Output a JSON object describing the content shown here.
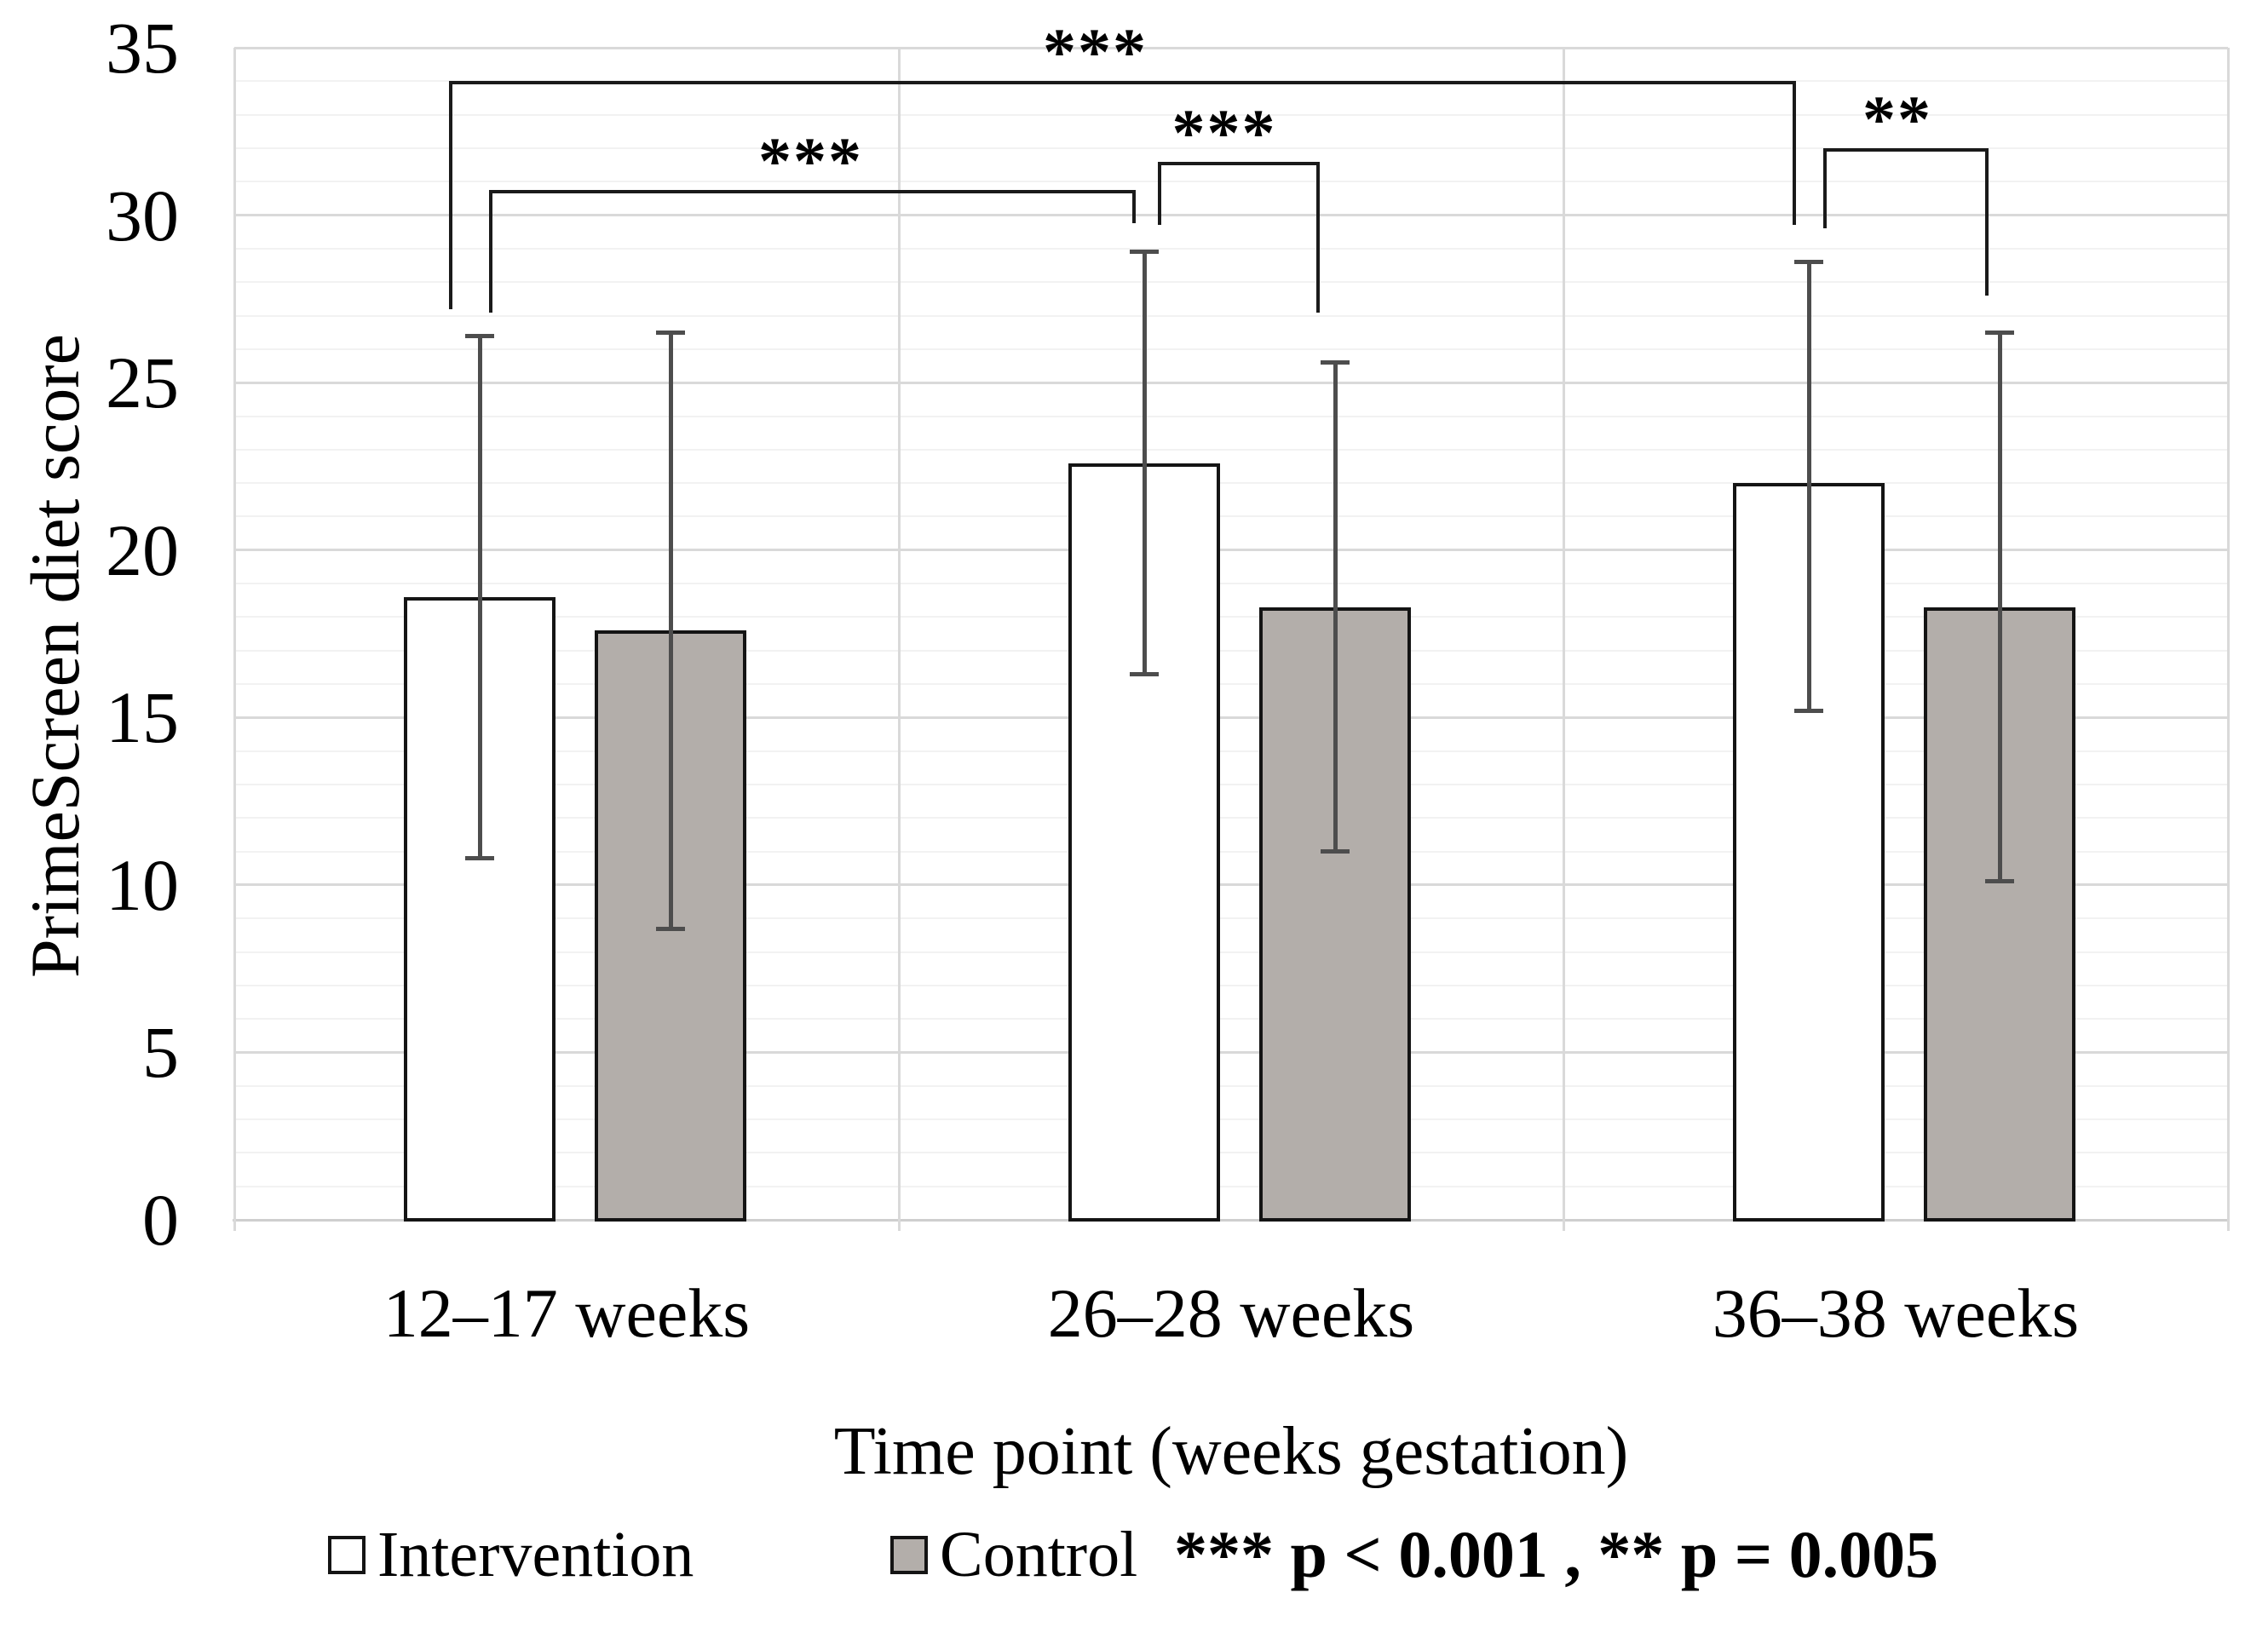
{
  "chart_data": {
    "type": "bar",
    "title": "",
    "ylabel": "PrimeScreen diet score",
    "xlabel": "Time point (weeks gestation)",
    "ylim": [
      0,
      35
    ],
    "y_major_ticks": [
      0,
      5,
      10,
      15,
      20,
      25,
      30,
      35
    ],
    "y_minor_step": 1,
    "grid": "horizontal minor every 1 (very light), major every 5 (light gray), light gray plot border and vertical category separators",
    "legend_position": "bottom",
    "categories": [
      "12–17 weeks",
      "26–28 weeks",
      "36–38 weeks"
    ],
    "series": [
      {
        "name": "Intervention",
        "fill": "#ffffff",
        "values": [
          18.6,
          22.6,
          22.0
        ],
        "error_low": [
          10.8,
          16.3,
          15.2
        ],
        "error_high": [
          26.4,
          28.9,
          28.6
        ]
      },
      {
        "name": "Control",
        "fill": "#b3aeaa",
        "values": [
          17.6,
          18.3,
          18.3
        ],
        "error_low": [
          8.7,
          11.0,
          10.1
        ],
        "error_high": [
          26.5,
          25.6,
          26.5
        ]
      }
    ],
    "significance_brackets": [
      {
        "label": "***",
        "from": {
          "group": 0,
          "series": 0,
          "dx": -36
        },
        "to": {
          "group": 2,
          "series": 0,
          "dx": -19
        },
        "bar_value": 34.0,
        "from_drop_value": 27.2,
        "to_drop_value": 29.7,
        "label_dx": -30
      },
      {
        "label": "***",
        "from": {
          "group": 0,
          "series": 0,
          "dx": 11
        },
        "to": {
          "group": 1,
          "series": 0,
          "dx": -14
        },
        "bar_value": 30.75,
        "from_drop_value": 27.1,
        "to_drop_value": 29.75,
        "label_dx": 0
      },
      {
        "label": "***",
        "from": {
          "group": 1,
          "series": 0,
          "dx": 16
        },
        "to": {
          "group": 1,
          "series": 1,
          "dx": -22
        },
        "bar_value": 31.6,
        "from_drop_value": 29.7,
        "to_drop_value": 27.1,
        "label_dx": -15
      },
      {
        "label": "**",
        "from": {
          "group": 2,
          "series": 0,
          "dx": 17
        },
        "to": {
          "group": 2,
          "series": 1,
          "dx": -17
        },
        "bar_value": 32.0,
        "from_drop_value": 29.6,
        "to_drop_value": 27.6,
        "label_dx": -8
      }
    ],
    "footnote": "*** p < 0.001 , ** p = 0.005"
  },
  "colors": {
    "bar_outline": "#141414",
    "intervention_fill": "#ffffff",
    "control_fill": "#b3aeaa",
    "error_bar": "#4d4d4d",
    "major_grid": "#d9d9d9",
    "minor_grid": "#f2f2f2",
    "bracket": "#1a1a1a",
    "text": "#000000"
  }
}
